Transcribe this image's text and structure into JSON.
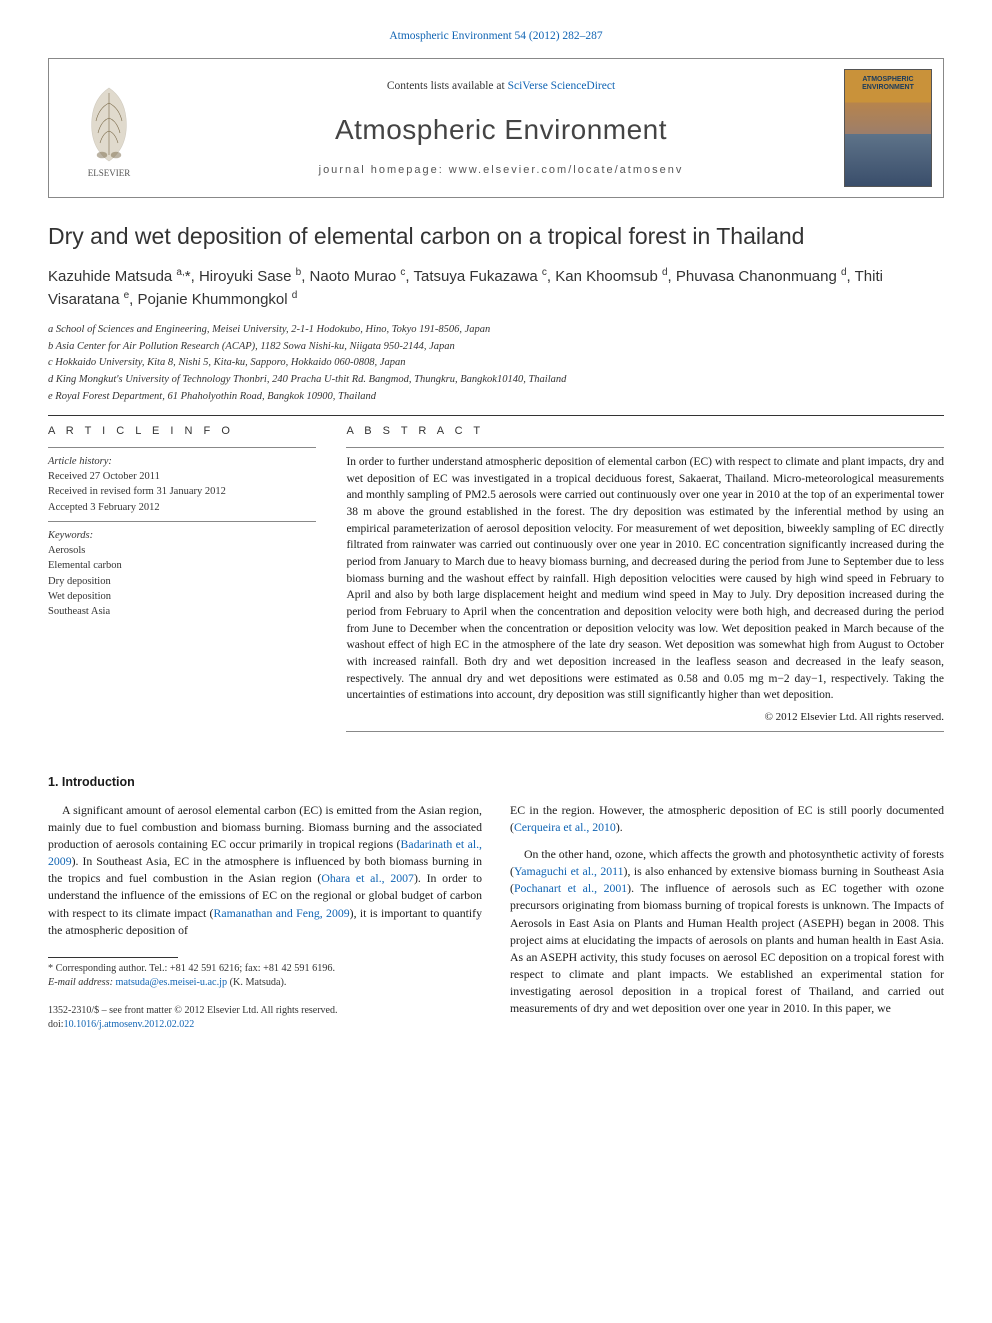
{
  "top_link": "Atmospheric Environment 54 (2012) 282–287",
  "header": {
    "contents_prefix": "Contents lists available at ",
    "contents_link": "SciVerse ScienceDirect",
    "journal": "Atmospheric Environment",
    "homepage": "journal homepage: www.elsevier.com/locate/atmosenv",
    "cover_label": "ATMOSPHERIC ENVIRONMENT"
  },
  "title": "Dry and wet deposition of elemental carbon on a tropical forest in Thailand",
  "authors_html": "Kazuhide Matsuda <sup>a,</sup>*, Hiroyuki Sase <sup>b</sup>, Naoto Murao <sup>c</sup>, Tatsuya Fukazawa <sup>c</sup>, Kan Khoomsub <sup>d</sup>, Phuvasa Chanonmuang <sup>d</sup>, Thiti Visaratana <sup>e</sup>, Pojanie Khummongkol <sup>d</sup>",
  "affiliations": [
    "a School of Sciences and Engineering, Meisei University, 2-1-1 Hodokubo, Hino, Tokyo 191-8506, Japan",
    "b Asia Center for Air Pollution Research (ACAP), 1182 Sowa Nishi-ku, Niigata 950-2144, Japan",
    "c Hokkaido University, Kita 8, Nishi 5, Kita-ku, Sapporo, Hokkaido 060-0808, Japan",
    "d King Mongkut's University of Technology Thonbri, 240 Pracha U-thit Rd. Bangmod, Thungkru, Bangkok10140, Thailand",
    "e Royal Forest Department, 61 Phaholyothin Road, Bangkok 10900, Thailand"
  ],
  "article_info": {
    "heading": "A R T I C L E   I N F O",
    "history_label": "Article history:",
    "received": "Received 27 October 2011",
    "revised": "Received in revised form 31 January 2012",
    "accepted": "Accepted 3 February 2012",
    "keywords_label": "Keywords:",
    "keywords": [
      "Aerosols",
      "Elemental carbon",
      "Dry deposition",
      "Wet deposition",
      "Southeast Asia"
    ]
  },
  "abstract": {
    "heading": "A B S T R A C T",
    "text": "In order to further understand atmospheric deposition of elemental carbon (EC) with respect to climate and plant impacts, dry and wet deposition of EC was investigated in a tropical deciduous forest, Sakaerat, Thailand. Micro-meteorological measurements and monthly sampling of PM2.5 aerosols were carried out continuously over one year in 2010 at the top of an experimental tower 38 m above the ground established in the forest. The dry deposition was estimated by the inferential method by using an empirical parameterization of aerosol deposition velocity. For measurement of wet deposition, biweekly sampling of EC directly filtrated from rainwater was carried out continuously over one year in 2010. EC concentration significantly increased during the period from January to March due to heavy biomass burning, and decreased during the period from June to September due to less biomass burning and the washout effect by rainfall. High deposition velocities were caused by high wind speed in February to April and also by both large displacement height and medium wind speed in May to July. Dry deposition increased during the period from February to April when the concentration and deposition velocity were both high, and decreased during the period from June to December when the concentration or deposition velocity was low. Wet deposition peaked in March because of the washout effect of high EC in the atmosphere of the late dry season. Wet deposition was somewhat high from August to October with increased rainfall. Both dry and wet deposition increased in the leafless season and decreased in the leafy season, respectively. The annual dry and wet depositions were estimated as 0.58 and 0.05 mg m−2 day−1, respectively. Taking the uncertainties of estimations into account, dry deposition was still significantly higher than wet deposition.",
    "copyright": "© 2012 Elsevier Ltd. All rights reserved."
  },
  "intro": {
    "heading": "1.  Introduction",
    "p1_a": "A significant amount of aerosol elemental carbon (EC) is emitted from the Asian region, mainly due to fuel combustion and biomass burning. Biomass burning and the associated production of aerosols containing EC occur primarily in tropical regions (",
    "p1_ref1": "Badarinath et al., 2009",
    "p1_b": "). In Southeast Asia, EC in the atmosphere is influenced by both biomass burning in the tropics and fuel combustion in the Asian region (",
    "p1_ref2": "Ohara et al., 2007",
    "p1_c": "). In order to understand the influence of the emissions of EC on the regional or global budget of carbon with respect to its climate impact (",
    "p1_ref3": "Ramanathan and Feng, 2009",
    "p1_d": "), it is important to quantify the atmospheric deposition of ",
    "p1_e": "EC in the region. However, the atmospheric deposition of EC is still poorly documented (",
    "p1_ref4": "Cerqueira et al., 2010",
    "p1_f": ").",
    "p2_a": "On the other hand, ozone, which affects the growth and photosynthetic activity of forests (",
    "p2_ref1": "Yamaguchi et al., 2011",
    "p2_b": "), is also enhanced by extensive biomass burning in Southeast Asia (",
    "p2_ref2": "Pochanart et al., 2001",
    "p2_c": "). The influence of aerosols such as EC together with ozone precursors originating from biomass burning of tropical forests is unknown. The Impacts of Aerosols in East Asia on Plants and Human Health project (ASEPH) began in 2008. This project aims at elucidating the impacts of aerosols on plants and human health in East Asia. As an ASEPH activity, this study focuses on aerosol EC deposition on a tropical forest with respect to climate and plant impacts. We established an experimental station for investigating aerosol deposition in a tropical forest of Thailand, and carried out measurements of dry and wet deposition over one year in 2010. In this paper, we"
  },
  "footnotes": {
    "corresponding": "* Corresponding author. Tel.: +81 42 591 6216; fax: +81 42 591 6196.",
    "email_label": "E-mail address: ",
    "email": "matsuda@es.meisei-u.ac.jp",
    "email_suffix": " (K. Matsuda)."
  },
  "pubinfo": {
    "line1": "1352-2310/$ – see front matter © 2012 Elsevier Ltd. All rights reserved.",
    "doi_prefix": "doi:",
    "doi": "10.1016/j.atmosenv.2012.02.022"
  },
  "colors": {
    "link": "#1064b3",
    "text": "#1a1a1a",
    "rule": "#333333",
    "bg": "#ffffff"
  }
}
